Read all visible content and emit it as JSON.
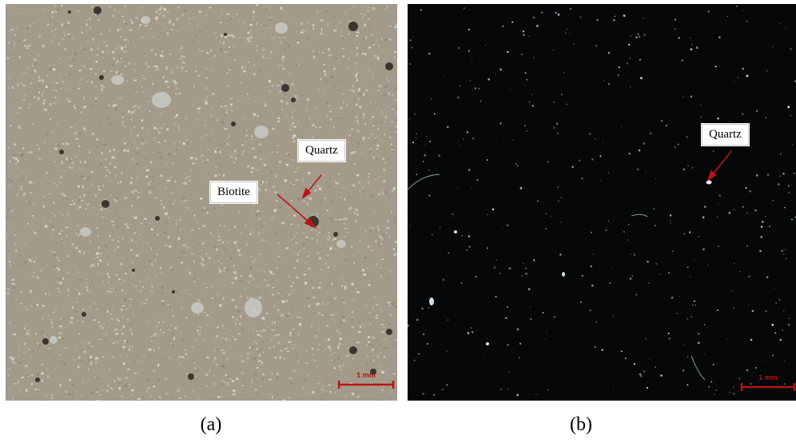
{
  "panels": [
    {
      "caption": "(a)",
      "annotations": [
        "Quartz",
        "Biotite"
      ],
      "scale_bar": "1 mm",
      "colors": {
        "background": "#a39a8a",
        "speckle": "#d0ccc2",
        "grain": "#3a3530",
        "arrow": "#b81414"
      }
    },
    {
      "caption": "(b)",
      "annotations": [
        "Quartz"
      ],
      "scale_bar": "1 mm",
      "colors": {
        "background": "#060708",
        "speckle": "#c8d2dc",
        "arrow": "#b81414"
      }
    }
  ]
}
